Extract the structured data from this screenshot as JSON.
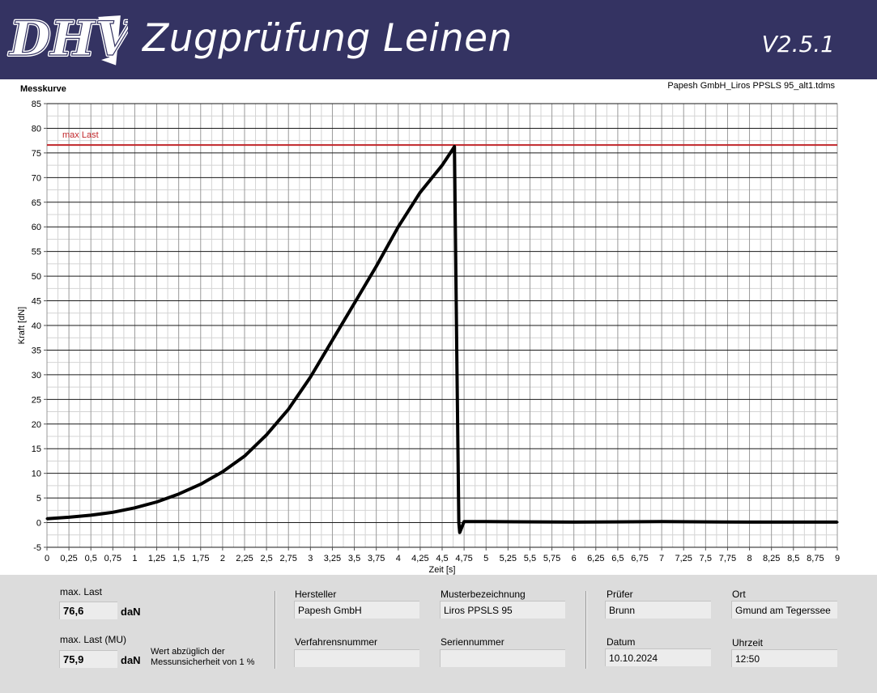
{
  "header": {
    "logo_text": "DHV",
    "title": "Zugprüfung Leinen",
    "version": "V2.5.1"
  },
  "chart": {
    "label": "Messkurve",
    "file_name": "Papesh GmbH_Liros PPSLS 95_alt1.tdms"
  },
  "chart_data": {
    "type": "line",
    "title": "",
    "xlabel": "Zeit [s]",
    "ylabel": "Kraft [dN]",
    "xlim": [
      0,
      9
    ],
    "ylim": [
      -5,
      85
    ],
    "x_ticks": [
      "0",
      "0,25",
      "0,5",
      "0,75",
      "1",
      "1,25",
      "1,5",
      "1,75",
      "2",
      "2,25",
      "2,5",
      "2,75",
      "3",
      "3,25",
      "3,5",
      "3,75",
      "4",
      "4,25",
      "4,5",
      "4,75",
      "5",
      "5,25",
      "5,5",
      "5,75",
      "6",
      "6,25",
      "6,5",
      "6,75",
      "7",
      "7,25",
      "7,5",
      "7,75",
      "8",
      "8,25",
      "8,5",
      "8,75",
      "9"
    ],
    "y_ticks": [
      "85",
      "80",
      "75",
      "70",
      "65",
      "60",
      "55",
      "50",
      "45",
      "40",
      "35",
      "30",
      "25",
      "20",
      "15",
      "10",
      "5",
      "0",
      "-5"
    ],
    "grid": true,
    "reference_line": {
      "label": "max Last",
      "value": 76.6,
      "color": "#c0262a"
    },
    "series": [
      {
        "color": "#000000",
        "x": [
          0,
          0.25,
          0.5,
          0.75,
          1.0,
          1.25,
          1.5,
          1.75,
          2.0,
          2.25,
          2.5,
          2.75,
          3.0,
          3.25,
          3.5,
          3.75,
          4.0,
          4.25,
          4.5,
          4.62,
          4.64,
          4.65,
          4.67,
          4.69,
          4.7,
          4.75,
          5.0,
          6.0,
          7.0,
          8.0,
          9.0
        ],
        "y": [
          0.8,
          1.1,
          1.5,
          2.1,
          3.0,
          4.2,
          5.8,
          7.8,
          10.3,
          13.5,
          17.8,
          23.0,
          29.5,
          37.0,
          44.5,
          52.0,
          60.0,
          67.0,
          72.5,
          75.7,
          76.3,
          60.0,
          30.0,
          0.0,
          -2.0,
          0.2,
          0.2,
          0.1,
          0.2,
          0.1,
          0.1
        ]
      }
    ]
  },
  "results": {
    "max_last_label": "max. Last",
    "max_last_value": "76,6",
    "max_last_unit": "daN",
    "max_last_mu_label": "max. Last (MU)",
    "max_last_mu_value": "75,9",
    "max_last_mu_unit": "daN",
    "mu_note_line1": "Wert abzüglich der",
    "mu_note_line2": "Messunsicherheit von 1 %"
  },
  "details": {
    "hersteller_label": "Hersteller",
    "hersteller_value": "Papesh GmbH",
    "musterbezeichnung_label": "Musterbezeichnung",
    "musterbezeichnung_value": "Liros PPSLS 95",
    "verfahrensnummer_label": "Verfahrensnummer",
    "verfahrensnummer_value": "",
    "seriennummer_label": "Seriennummer",
    "seriennummer_value": "",
    "pruefer_label": "Prüfer",
    "pruefer_value": "Brunn",
    "ort_label": "Ort",
    "ort_value": "Gmund am Tegerssee",
    "datum_label": "Datum",
    "datum_value": "10.10.2024",
    "uhrzeit_label": "Uhrzeit",
    "uhrzeit_value": "12:50"
  }
}
